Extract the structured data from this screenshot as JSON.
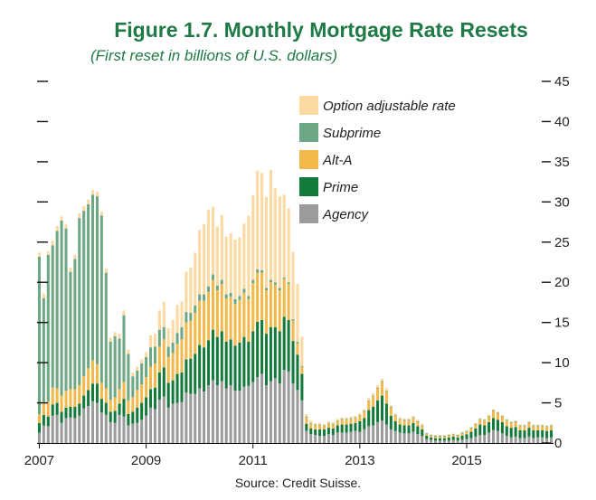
{
  "chart_data": {
    "type": "bar",
    "stacked": true,
    "title": "Figure 1.7. Monthly Mortgage Rate Resets",
    "subtitle": "(First reset in billions of U.S. dollars)",
    "source": "Source: Credit Suisse.",
    "xlabel": "",
    "ylabel": "",
    "ylim": [
      0,
      45
    ],
    "yticks": [
      0,
      5,
      10,
      15,
      20,
      25,
      30,
      35,
      40,
      45
    ],
    "xticks": [
      "2007",
      "2009",
      "2011",
      "2013",
      "2015"
    ],
    "legend_position": "top-center",
    "colors": {
      "option_arm": "#fbd9a0",
      "subprime": "#6ea784",
      "alt_a": "#f3b84a",
      "prime": "#147a3c",
      "agency": "#9b9b9b",
      "title": "#1f7a45"
    },
    "legend": [
      "Option adjustable rate",
      "Subprime",
      "Alt-A",
      "Prime",
      "Agency"
    ],
    "categories": [
      "2007-01",
      "2007-02",
      "2007-03",
      "2007-04",
      "2007-05",
      "2007-06",
      "2007-07",
      "2007-08",
      "2007-09",
      "2007-10",
      "2007-11",
      "2007-12",
      "2008-01",
      "2008-02",
      "2008-03",
      "2008-04",
      "2008-05",
      "2008-06",
      "2008-07",
      "2008-08",
      "2008-09",
      "2008-10",
      "2008-11",
      "2008-12",
      "2009-01",
      "2009-02",
      "2009-03",
      "2009-04",
      "2009-05",
      "2009-06",
      "2009-07",
      "2009-08",
      "2009-09",
      "2009-10",
      "2009-11",
      "2009-12",
      "2010-01",
      "2010-02",
      "2010-03",
      "2010-04",
      "2010-05",
      "2010-06",
      "2010-07",
      "2010-08",
      "2010-09",
      "2010-10",
      "2010-11",
      "2010-12",
      "2011-01",
      "2011-02",
      "2011-03",
      "2011-04",
      "2011-05",
      "2011-06",
      "2011-07",
      "2011-08",
      "2011-09",
      "2011-10",
      "2011-11",
      "2011-12",
      "2012-01",
      "2012-02",
      "2012-03",
      "2012-04",
      "2012-05",
      "2012-06",
      "2012-07",
      "2012-08",
      "2012-09",
      "2012-10",
      "2012-11",
      "2012-12",
      "2013-01",
      "2013-02",
      "2013-03",
      "2013-04",
      "2013-05",
      "2013-06",
      "2013-07",
      "2013-08",
      "2013-09",
      "2013-10",
      "2013-11",
      "2013-12",
      "2014-01",
      "2014-02",
      "2014-03",
      "2014-04",
      "2014-05",
      "2014-06",
      "2014-07",
      "2014-08",
      "2014-09",
      "2014-10",
      "2014-11",
      "2014-12",
      "2015-01",
      "2015-02",
      "2015-03",
      "2015-04",
      "2015-05",
      "2015-06",
      "2015-07",
      "2015-08",
      "2015-09",
      "2015-10",
      "2015-11",
      "2015-12",
      "2016-01",
      "2016-02",
      "2016-03",
      "2016-04",
      "2016-05",
      "2016-06",
      "2016-07",
      "2016-08"
    ],
    "series": [
      {
        "name": "Agency",
        "key": "agency",
        "values": [
          1.3,
          2.2,
          2.1,
          3.4,
          3.5,
          2.5,
          3.1,
          3.2,
          3.1,
          3.4,
          4.3,
          4.6,
          5.2,
          5.0,
          3.8,
          3.5,
          2.6,
          2.5,
          3.5,
          3.3,
          2.2,
          2.4,
          2.5,
          2.9,
          3.4,
          4.4,
          4.2,
          5.4,
          5.8,
          4.4,
          4.9,
          5.0,
          5.1,
          6.3,
          6.1,
          6.1,
          6.8,
          6.4,
          7.2,
          7.8,
          7.2,
          7.7,
          6.8,
          7.2,
          6.5,
          6.5,
          7.0,
          7.1,
          7.6,
          8.2,
          8.6,
          7.2,
          7.7,
          8.1,
          7.4,
          9.1,
          8.9,
          7.4,
          6.6,
          5.3,
          1.5,
          1.1,
          1.0,
          0.9,
          0.9,
          1.1,
          1.0,
          1.3,
          1.3,
          1.3,
          1.4,
          1.5,
          1.4,
          1.7,
          2.1,
          2.2,
          2.6,
          2.8,
          2.3,
          1.7,
          1.5,
          1.3,
          1.2,
          1.2,
          1.4,
          1.1,
          0.9,
          0.5,
          0.4,
          0.3,
          0.3,
          0.3,
          0.3,
          0.4,
          0.3,
          0.4,
          0.5,
          0.6,
          0.8,
          1.0,
          1.0,
          1.3,
          1.6,
          1.5,
          1.2,
          0.9,
          0.7,
          0.8,
          0.6,
          0.6,
          0.8,
          0.6,
          0.7,
          0.7,
          0.6,
          0.7
        ]
      },
      {
        "name": "Prime",
        "key": "prime",
        "values": [
          1.2,
          1.3,
          1.2,
          1.4,
          1.5,
          1.4,
          1.3,
          1.3,
          1.4,
          1.5,
          1.6,
          2.0,
          2.2,
          2.4,
          1.7,
          1.5,
          1.3,
          1.5,
          1.4,
          2.2,
          1.4,
          1.5,
          1.9,
          2.1,
          2.3,
          2.3,
          2.7,
          3.4,
          3.6,
          3.1,
          2.9,
          3.6,
          3.7,
          4.1,
          4.4,
          5.0,
          5.4,
          5.5,
          5.6,
          6.3,
          6.0,
          6.2,
          5.8,
          5.7,
          5.6,
          6.0,
          6.2,
          5.5,
          6.3,
          6.9,
          6.7,
          6.4,
          6.7,
          6.3,
          6.5,
          6.6,
          6.4,
          5.3,
          4.4,
          3.3,
          0.9,
          0.7,
          0.7,
          0.8,
          0.8,
          0.8,
          0.8,
          0.9,
          1.0,
          1.0,
          1.0,
          1.0,
          1.3,
          1.4,
          2.0,
          2.3,
          2.7,
          3.1,
          2.6,
          1.7,
          1.2,
          1.0,
          1.0,
          1.0,
          1.1,
          1.0,
          0.8,
          0.4,
          0.3,
          0.3,
          0.3,
          0.3,
          0.4,
          0.4,
          0.4,
          0.5,
          0.6,
          0.8,
          1.0,
          1.3,
          1.2,
          1.3,
          1.5,
          1.4,
          1.4,
          1.2,
          1.2,
          1.2,
          1.0,
          1.0,
          1.1,
          1.0,
          0.9,
          0.9,
          0.9,
          0.9
        ]
      },
      {
        "name": "Alt-A",
        "key": "alt_a",
        "values": [
          1.1,
          1.6,
          1.9,
          2.1,
          1.8,
          2.0,
          2.1,
          2.2,
          2.2,
          2.3,
          2.4,
          2.7,
          2.9,
          2.4,
          2.0,
          1.8,
          1.5,
          1.7,
          1.8,
          2.1,
          1.7,
          1.8,
          2.2,
          2.3,
          2.5,
          2.8,
          3.0,
          3.2,
          3.5,
          3.2,
          3.4,
          3.7,
          4.1,
          4.6,
          4.7,
          5.1,
          5.5,
          5.8,
          6.0,
          6.2,
          5.8,
          5.9,
          5.4,
          5.3,
          5.2,
          5.3,
          5.5,
          5.3,
          6.0,
          6.1,
          5.9,
          5.4,
          5.6,
          5.3,
          5.1,
          4.7,
          4.5,
          2.5,
          1.4,
          0.9,
          0.8,
          0.6,
          0.5,
          0.5,
          0.4,
          0.5,
          0.5,
          0.5,
          0.6,
          0.6,
          0.6,
          0.6,
          0.7,
          0.8,
          1.1,
          1.3,
          1.5,
          1.7,
          1.5,
          1.0,
          0.7,
          0.6,
          0.6,
          0.6,
          0.6,
          0.5,
          0.4,
          0.2,
          0.2,
          0.2,
          0.2,
          0.2,
          0.2,
          0.2,
          0.2,
          0.3,
          0.3,
          0.4,
          0.5,
          0.6,
          0.6,
          0.7,
          0.9,
          0.8,
          0.7,
          0.7,
          0.6,
          0.6,
          0.5,
          0.5,
          0.6,
          0.5,
          0.5,
          0.5,
          0.5,
          0.5
        ]
      },
      {
        "name": "Subprime",
        "key": "subprime",
        "values": [
          19.6,
          12.9,
          18.2,
          17.7,
          19.6,
          21.8,
          20.2,
          14.6,
          16.2,
          20.8,
          20.6,
          20.4,
          20.6,
          20.9,
          20.8,
          14.4,
          7.2,
          7.6,
          6.3,
          8.3,
          5.8,
          2.6,
          2.4,
          2.6,
          2.5,
          2.4,
          2.1,
          2.1,
          1.5,
          1.3,
          1.3,
          1.4,
          1.5,
          1.3,
          1.0,
          0.9,
          0.8,
          0.8,
          0.7,
          0.7,
          0.6,
          0.5,
          0.5,
          0.5,
          0.6,
          0.5,
          0.5,
          0.4,
          0.4,
          0.4,
          0.3,
          0.3,
          0.3,
          0.3,
          0.3,
          0.2,
          0.2,
          0.2,
          0.2,
          0.1,
          0.1,
          0.1,
          0.1,
          0.1,
          0.1,
          0.1,
          0.1,
          0.1,
          0.1,
          0.1,
          0.1,
          0.1,
          0.1,
          0.1,
          0.1,
          0.1,
          0.1,
          0.1,
          0.1,
          0.1,
          0.1,
          0.1,
          0.1,
          0.1,
          0.1,
          0.1,
          0.1,
          0.1,
          0.1,
          0.1,
          0.1,
          0.1,
          0.1,
          0.1,
          0.1,
          0.1,
          0.1,
          0.1,
          0.1,
          0.1,
          0.1,
          0.1,
          0.1,
          0.1,
          0.1,
          0.1,
          0.1,
          0.1,
          0.1,
          0.1,
          0.1,
          0.1,
          0.1,
          0.1,
          0.1,
          0.1
        ]
      },
      {
        "name": "Option adjustable rate",
        "key": "option_arm",
        "values": [
          0.5,
          0.6,
          0.5,
          0.6,
          0.6,
          0.5,
          0.5,
          0.5,
          0.5,
          0.6,
          0.6,
          0.6,
          0.6,
          0.6,
          0.5,
          0.5,
          0.5,
          0.5,
          0.6,
          0.6,
          0.5,
          0.5,
          0.5,
          0.5,
          0.6,
          1.5,
          1.6,
          2.4,
          3.2,
          2.3,
          2.8,
          3.5,
          3.2,
          5.0,
          5.6,
          6.6,
          8.0,
          8.7,
          9.5,
          8.4,
          7.3,
          8.1,
          7.2,
          7.4,
          7.4,
          7.3,
          8.1,
          10.0,
          10.5,
          12.3,
          12.1,
          11.3,
          13.7,
          11.7,
          11.4,
          10.3,
          9.2,
          8.4,
          7.2,
          3.6,
          0.3,
          0.3,
          0.2,
          0.2,
          0.2,
          0.2,
          0.2,
          0.2,
          0.2,
          0.2,
          0.2,
          0.2,
          0.2,
          0.2,
          0.3,
          0.3,
          0.3,
          0.3,
          0.3,
          0.2,
          0.2,
          0.2,
          0.2,
          0.2,
          0.2,
          0.2,
          0.2,
          0.1,
          0.1,
          0.1,
          0.1,
          0.1,
          0.1,
          0.1,
          0.1,
          0.1,
          0.1,
          0.1,
          0.1,
          0.1,
          0.1,
          0.1,
          0.1,
          0.1,
          0.1,
          0.1,
          0.1,
          0.1,
          0.1,
          0.1,
          0.1,
          0.1,
          0.1,
          0.1,
          0.1,
          0.1
        ]
      }
    ]
  }
}
